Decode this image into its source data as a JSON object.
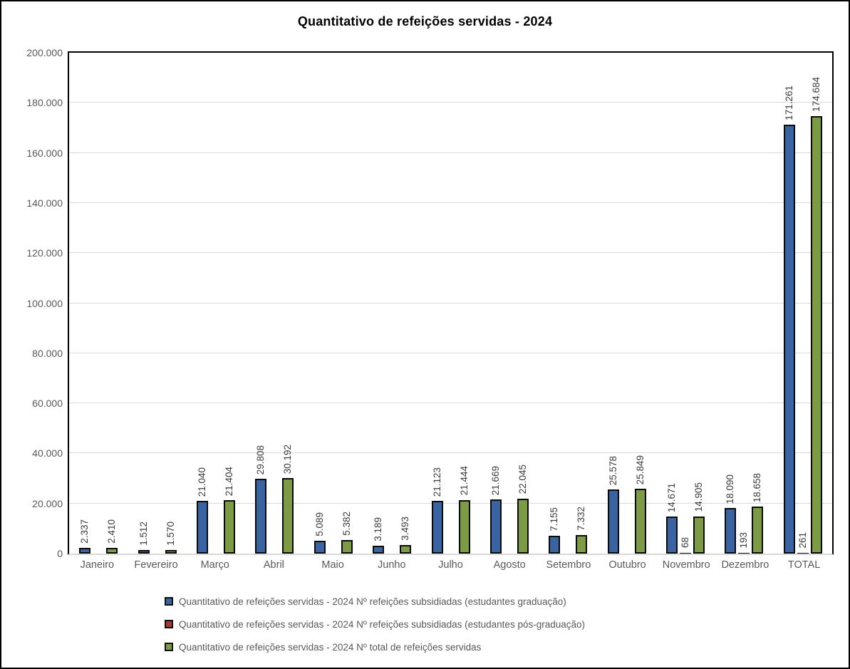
{
  "chart_data": {
    "type": "bar",
    "title": "Quantitativo de refeições servidas - 2024",
    "categories": [
      "Janeiro",
      "Fevereiro",
      "Março",
      "Abril",
      "Maio",
      "Junho",
      "Julho",
      "Agosto",
      "Setembro",
      "Outubro",
      "Novembro",
      "Dezembro",
      "TOTAL"
    ],
    "series": [
      {
        "key": "graduacao",
        "name": "Nº refeições subsidiadas (estudantes graduação)",
        "legend_label": "Quantitativo de refeições servidas - 2024 Nº refeições subsidiadas (estudantes graduação)",
        "color": "#3a63a1",
        "values": [
          2337,
          1512,
          21040,
          29808,
          5089,
          3189,
          21123,
          21669,
          7155,
          25578,
          14671,
          18090,
          171261
        ],
        "labels": [
          "2.337",
          "1.512",
          "21.040",
          "29.808",
          "5.089",
          "3.189",
          "21.123",
          "21.669",
          "7.155",
          "25.578",
          "14.671",
          "18.090",
          "171.261"
        ]
      },
      {
        "key": "pos-graduacao",
        "name": "Nº refeições subsidiadas (estudantes pós-graduação)",
        "legend_label": "Quantitativo de refeições servidas - 2024 Nº refeições subsidiadas (estudantes pós-graduação)",
        "color": "#a23b35",
        "values": [
          0,
          0,
          0,
          0,
          0,
          0,
          0,
          0,
          0,
          0,
          68,
          193,
          261
        ],
        "labels": [
          "",
          "",
          "",
          "",
          "",
          "",
          "",
          "",
          "",
          "",
          "68",
          "193",
          "261"
        ]
      },
      {
        "key": "total",
        "name": "Nº total de refeições servidas",
        "legend_label": "Quantitativo de refeições servidas - 2024 Nº total de refeições servidas",
        "color": "#7d9b45",
        "values": [
          2410,
          1570,
          21404,
          30192,
          5382,
          3493,
          21444,
          22045,
          7332,
          25849,
          14905,
          18658,
          174684
        ],
        "labels": [
          "2.410",
          "1.570",
          "21.404",
          "30.192",
          "5.382",
          "3.493",
          "21.444",
          "22.045",
          "7.332",
          "25.849",
          "14.905",
          "18.658",
          "174.684"
        ]
      }
    ],
    "xlabel": "",
    "ylabel": "",
    "ylim": [
      0,
      200000
    ],
    "y_ticks": [
      {
        "value": 0,
        "label": "0"
      },
      {
        "value": 20000,
        "label": "20.000"
      },
      {
        "value": 40000,
        "label": "40.000"
      },
      {
        "value": 60000,
        "label": "60.000"
      },
      {
        "value": 80000,
        "label": "80.000"
      },
      {
        "value": 100000,
        "label": "100.000"
      },
      {
        "value": 120000,
        "label": "120.000"
      },
      {
        "value": 140000,
        "label": "140.000"
      },
      {
        "value": 160000,
        "label": "160.000"
      },
      {
        "value": 180000,
        "label": "180.000"
      },
      {
        "value": 200000,
        "label": "200.000"
      }
    ],
    "grid": true,
    "legend_position": "bottom",
    "style": {
      "plot_border_color": "#000000",
      "gridline_color": "#d9d9d9",
      "baseline_color": "#d9d9d9",
      "axis_text_color": "#595959",
      "data_label_color": "#3c3c3c",
      "bar_border_color": "#0a0a0a",
      "background": "#ffffff"
    }
  }
}
